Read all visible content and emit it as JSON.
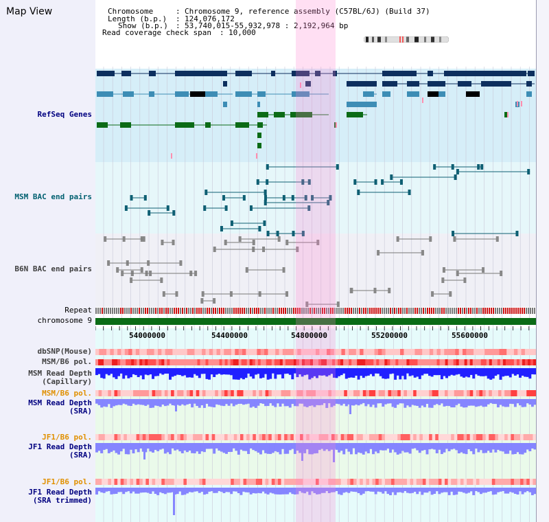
{
  "app": {
    "title": "Map View"
  },
  "info": {
    "chromosome_label": "Chromosome",
    "chromosome_value": "Chromosome 9, reference assembly (C57BL/6J) (Build 37)",
    "length_label": "Length (b.p.)",
    "length_value": "124,076,172",
    "show_label": "Show (b.p.)",
    "show_value": "53,740,015-55,932,978 : 2,192,964 bp",
    "coverage_label": "Read coverage check span",
    "coverage_value": "10,000"
  },
  "tracks": {
    "refseq": "RefSeq Genes",
    "msm_bac": "MSM BAC end pairs",
    "b6n_bac": "B6N BAC end pairs",
    "repeat": "Repeat",
    "chromosome": "chromosome 9",
    "dbsnp": "dbSNP(Mouse)",
    "msm_b6_pol": "MSM/B6 pol.",
    "msm_depth_cap_1": "MSM Read Depth",
    "msm_depth_cap_2": "(Capillary)",
    "msm_b6_pol_2": "MSM/B6 pol.",
    "msm_depth_sra_1": "MSM Read Depth",
    "msm_depth_sra_2": "(SRA)",
    "jf1_b6_pol": "JF1/B6 pol.",
    "jf1_depth_sra_1": "JF1 Read Depth",
    "jf1_depth_sra_2": "(SRA)",
    "jf1_b6_pol_2": "JF1/B6 pol.",
    "jf1_depth_trim_1": "JF1 Read Depth",
    "jf1_depth_trim_2": "(SRA trimmed)"
  },
  "axis": {
    "ticks": [
      "54000000",
      "54400000",
      "54800000",
      "55200000",
      "55600000"
    ]
  },
  "colors": {
    "refseq_bg": "#d6eef8",
    "bac_bg": "#e6f7fa",
    "b6n_bg": "#f0f0f6",
    "highlight": "#ff80d0",
    "navy": "#0d2f5e",
    "steel": "#3d8db5",
    "green": "#0b6b16",
    "teal": "#0e5f73",
    "gray": "#777777",
    "chrom_green": "#0b6b16",
    "depth_blue": "#2020ff",
    "depth_lav": "#8585ff",
    "label_navy": "#000080",
    "label_teal": "#006070",
    "label_orange": "#e09000",
    "label_gray": "#404040"
  }
}
